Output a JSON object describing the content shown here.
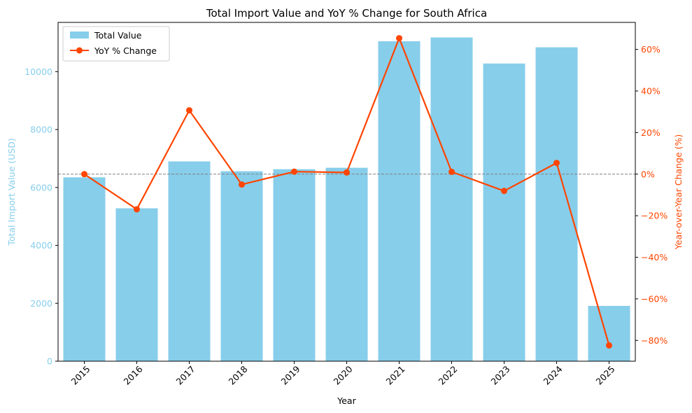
{
  "chart_data": {
    "type": "bar+line",
    "title": "Total Import Value and YoY % Change for South Africa",
    "xlabel": "Year",
    "ylabel_left": "Total Import Value (USD)",
    "ylabel_right": "Year-over-Year Change (%)",
    "categories": [
      "2015",
      "2016",
      "2017",
      "2018",
      "2019",
      "2020",
      "2021",
      "2022",
      "2023",
      "2024",
      "2025"
    ],
    "left_ylim": [
      0,
      11700
    ],
    "left_ticks": [
      0,
      2000,
      4000,
      6000,
      8000,
      10000
    ],
    "left_tick_labels": [
      "0",
      "2000",
      "4000",
      "6000",
      "8000",
      "10000"
    ],
    "right_ylim": [
      -90,
      73
    ],
    "right_ticks": [
      -80,
      -60,
      -40,
      -20,
      0,
      20,
      40,
      60
    ],
    "right_tick_labels": [
      "−80%",
      "−60%",
      "−40%",
      "−20%",
      "0%",
      "20%",
      "40%",
      "60%"
    ],
    "series": [
      {
        "name": "Total Value",
        "kind": "bar",
        "axis": "left",
        "color": "#87ceeb",
        "values": [
          6350,
          5280,
          6900,
          6560,
          6630,
          6680,
          11050,
          11180,
          10280,
          10840,
          1910
        ]
      },
      {
        "name": "YoY % Change",
        "kind": "line",
        "axis": "right",
        "color": "#ff4500",
        "values": [
          0,
          -16.9,
          30.7,
          -5.0,
          1.2,
          0.8,
          65.4,
          1.1,
          -8.1,
          5.4,
          -82.4
        ]
      }
    ],
    "reference_line": {
      "axis": "right",
      "value": 0,
      "style": "dashed",
      "color": "#808080"
    },
    "legend_position": "upper-left",
    "grid": false,
    "colors": {
      "left_axis": "#87ceeb",
      "right_axis": "#ff4500"
    }
  }
}
